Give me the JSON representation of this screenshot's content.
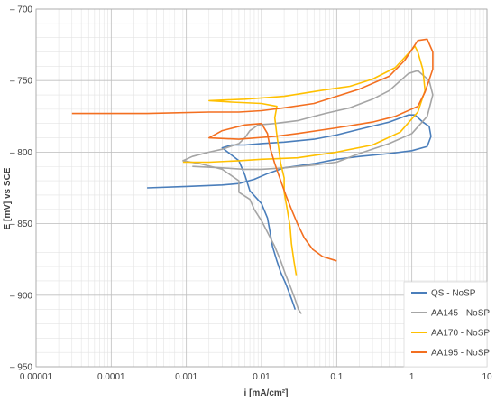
{
  "chart_data": {
    "type": "line",
    "xlabel": "i [mA/cm²]",
    "ylabel": "E [mV] vs SCE",
    "xscale": "log",
    "xlim": [
      1e-05,
      10
    ],
    "ylim": [
      -950,
      -700
    ],
    "y_reversed": true,
    "grid": true,
    "legend_position": "bottom-right",
    "x_ticks": [
      {
        "value": 1e-05,
        "label": "0.00001"
      },
      {
        "value": 0.0001,
        "label": "0.0001"
      },
      {
        "value": 0.001,
        "label": "0.001"
      },
      {
        "value": 0.01,
        "label": "0.01"
      },
      {
        "value": 0.1,
        "label": "0.1"
      },
      {
        "value": 1,
        "label": "1"
      },
      {
        "value": 10,
        "label": "10"
      }
    ],
    "y_ticks": [
      {
        "value": -700,
        "label": "– 700"
      },
      {
        "value": -750,
        "label": "– 750"
      },
      {
        "value": -800,
        "label": "– 800"
      },
      {
        "value": -850,
        "label": "– 850"
      },
      {
        "value": -900,
        "label": "– 900"
      },
      {
        "value": -950,
        "label": "– 950"
      }
    ],
    "series": [
      {
        "name": "QS - NoSP",
        "color": "#4a7ebb",
        "points": [
          [
            0.0003,
            -825
          ],
          [
            0.001,
            -824
          ],
          [
            0.003,
            -823
          ],
          [
            0.005,
            -822
          ],
          [
            0.008,
            -819
          ],
          [
            0.012,
            -815
          ],
          [
            0.02,
            -811
          ],
          [
            0.05,
            -808
          ],
          [
            0.1,
            -805
          ],
          [
            0.2,
            -803
          ],
          [
            0.5,
            -801
          ],
          [
            1.0,
            -799
          ],
          [
            1.6,
            -796
          ],
          [
            1.8,
            -789
          ],
          [
            1.7,
            -782
          ],
          [
            1.4,
            -779
          ],
          [
            1.1,
            -774
          ],
          [
            0.9,
            -774
          ],
          [
            0.5,
            -779
          ],
          [
            0.2,
            -784
          ],
          [
            0.1,
            -788
          ],
          [
            0.05,
            -791
          ],
          [
            0.02,
            -793
          ],
          [
            0.01,
            -794
          ],
          [
            0.006,
            -795
          ],
          [
            0.004,
            -795
          ],
          [
            0.003,
            -797
          ],
          [
            0.005,
            -806
          ],
          [
            0.006,
            -816
          ],
          [
            0.007,
            -827
          ],
          [
            0.01,
            -836
          ],
          [
            0.012,
            -846
          ],
          [
            0.013,
            -856
          ],
          [
            0.014,
            -866
          ],
          [
            0.016,
            -876
          ],
          [
            0.018,
            -884
          ],
          [
            0.021,
            -892
          ],
          [
            0.024,
            -900
          ],
          [
            0.026,
            -905
          ],
          [
            0.028,
            -910
          ]
        ]
      },
      {
        "name": "AA145 - NoSP",
        "color": "#a5a5a5",
        "points": [
          [
            0.0012,
            -810
          ],
          [
            0.003,
            -811
          ],
          [
            0.006,
            -812
          ],
          [
            0.01,
            -812
          ],
          [
            0.02,
            -811
          ],
          [
            0.05,
            -809
          ],
          [
            0.1,
            -807
          ],
          [
            0.2,
            -801
          ],
          [
            0.5,
            -794
          ],
          [
            1.0,
            -787
          ],
          [
            1.6,
            -775
          ],
          [
            1.9,
            -760
          ],
          [
            1.7,
            -750
          ],
          [
            1.2,
            -743
          ],
          [
            0.9,
            -745
          ],
          [
            0.5,
            -757
          ],
          [
            0.3,
            -763
          ],
          [
            0.15,
            -769
          ],
          [
            0.07,
            -773
          ],
          [
            0.03,
            -778
          ],
          [
            0.015,
            -780
          ],
          [
            0.009,
            -781
          ],
          [
            0.007,
            -785
          ],
          [
            0.006,
            -790
          ],
          [
            0.005,
            -794
          ],
          [
            0.003,
            -798
          ],
          [
            0.002,
            -800
          ],
          [
            0.0012,
            -803
          ],
          [
            0.0009,
            -806
          ],
          [
            0.0015,
            -808
          ],
          [
            0.003,
            -812
          ],
          [
            0.005,
            -820
          ],
          [
            0.005,
            -828
          ],
          [
            0.007,
            -833
          ],
          [
            0.008,
            -840
          ],
          [
            0.01,
            -848
          ],
          [
            0.012,
            -856
          ],
          [
            0.015,
            -866
          ],
          [
            0.018,
            -876
          ],
          [
            0.021,
            -886
          ],
          [
            0.025,
            -896
          ],
          [
            0.028,
            -903
          ],
          [
            0.031,
            -910
          ],
          [
            0.034,
            -913
          ]
        ]
      },
      {
        "name": "AA170 - NoSP",
        "color": "#ffc000",
        "points": [
          [
            0.0009,
            -807
          ],
          [
            0.002,
            -807
          ],
          [
            0.005,
            -806
          ],
          [
            0.01,
            -805
          ],
          [
            0.03,
            -804
          ],
          [
            0.1,
            -800
          ],
          [
            0.3,
            -795
          ],
          [
            0.7,
            -786
          ],
          [
            1.2,
            -772
          ],
          [
            1.5,
            -757
          ],
          [
            1.4,
            -742
          ],
          [
            1.2,
            -730
          ],
          [
            1.1,
            -726
          ],
          [
            0.9,
            -731
          ],
          [
            0.6,
            -741
          ],
          [
            0.3,
            -749
          ],
          [
            0.15,
            -754
          ],
          [
            0.06,
            -757
          ],
          [
            0.02,
            -761
          ],
          [
            0.006,
            -763
          ],
          [
            0.002,
            -764
          ],
          [
            0.004,
            -765
          ],
          [
            0.01,
            -766
          ],
          [
            0.016,
            -768
          ],
          [
            0.015,
            -776
          ],
          [
            0.016,
            -788
          ],
          [
            0.017,
            -798
          ],
          [
            0.018,
            -808
          ],
          [
            0.02,
            -818
          ],
          [
            0.02,
            -828
          ],
          [
            0.022,
            -840
          ],
          [
            0.024,
            -852
          ],
          [
            0.025,
            -864
          ],
          [
            0.027,
            -876
          ],
          [
            0.029,
            -886
          ]
        ]
      },
      {
        "name": "AA195 - NoSP",
        "color": "#f36f20",
        "points": [
          [
            3e-05,
            -773
          ],
          [
            0.0003,
            -773
          ],
          [
            0.002,
            -772
          ],
          [
            0.005,
            -772
          ],
          [
            0.01,
            -771
          ],
          [
            0.02,
            -769
          ],
          [
            0.05,
            -766
          ],
          [
            0.1,
            -761
          ],
          [
            0.2,
            -756
          ],
          [
            0.5,
            -747
          ],
          [
            0.8,
            -736
          ],
          [
            1.2,
            -722
          ],
          [
            1.6,
            -721
          ],
          [
            1.9,
            -730
          ],
          [
            1.9,
            -742
          ],
          [
            1.5,
            -758
          ],
          [
            1.2,
            -768
          ],
          [
            0.6,
            -775
          ],
          [
            0.3,
            -779
          ],
          [
            0.1,
            -783
          ],
          [
            0.03,
            -787
          ],
          [
            0.015,
            -789
          ],
          [
            0.005,
            -791
          ],
          [
            0.002,
            -790
          ],
          [
            0.003,
            -785
          ],
          [
            0.006,
            -781
          ],
          [
            0.01,
            -780
          ],
          [
            0.012,
            -787
          ],
          [
            0.013,
            -797
          ],
          [
            0.015,
            -808
          ],
          [
            0.018,
            -820
          ],
          [
            0.021,
            -830
          ],
          [
            0.025,
            -840
          ],
          [
            0.03,
            -850
          ],
          [
            0.037,
            -860
          ],
          [
            0.048,
            -868
          ],
          [
            0.065,
            -873
          ],
          [
            0.1,
            -876
          ]
        ]
      }
    ]
  }
}
